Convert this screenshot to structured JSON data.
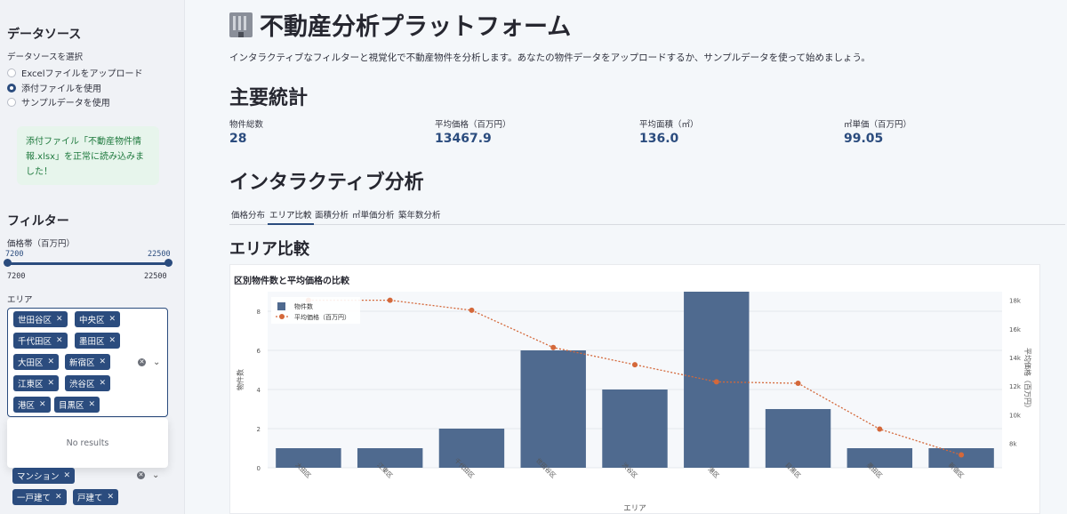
{
  "sidebar": {
    "data_source_heading": "データソース",
    "data_source_label": "データソースを選択",
    "options": [
      "Excelファイルをアップロード",
      "添付ファイルを使用",
      "サンプルデータを使用"
    ],
    "selected_option": 1,
    "success_message": "添付ファイル「不動産物件情報.xlsx」を正常に読み込みました！",
    "filter_heading": "フィルター",
    "price_label": "価格帯（百万円）",
    "price_min": "7200",
    "price_max": "22500",
    "price_min_bottom": "7200",
    "price_max_bottom": "22500",
    "area_label": "エリア",
    "area_tags": [
      "世田谷区",
      "中央区",
      "千代田区",
      "墨田区",
      "大田区",
      "新宿区",
      "江東区",
      "渋谷区",
      "港区",
      "目黒区"
    ],
    "no_results": "No results",
    "type_tags": [
      "マンション",
      "一戸建て",
      "戸建て"
    ]
  },
  "main": {
    "title": "不動産分析プラットフォーム",
    "title_icon": "office-building-icon",
    "description": "インタラクティブなフィルターと視覚化で不動産物件を分析します。あなたの物件データをアップロードするか、サンプルデータを使って始めましょう。",
    "stats_heading": "主要統計",
    "metrics": [
      {
        "label": "物件総数",
        "value": "28"
      },
      {
        "label": "平均価格（百万円）",
        "value": "13467.9"
      },
      {
        "label": "平均面積（㎡）",
        "value": "136.0"
      },
      {
        "label": "㎡単価（百万円）",
        "value": "99.05"
      }
    ],
    "analysis_heading": "インタラクティブ分析",
    "tabs": [
      "価格分布",
      "エリア比較",
      "面積分析",
      "㎡単価分析",
      "築年数分析"
    ],
    "active_tab": 1,
    "sub_heading": "エリア比較"
  },
  "colors": {
    "bar": "#4f6a8f",
    "line": "#d4683a",
    "accent": "#2b4c7e"
  },
  "chart_data": {
    "type": "bar",
    "title": "区別物件数と平均価格の比較",
    "xlabel": "エリア",
    "ylabel": "物件数",
    "y2label": "平均価格（百万円）",
    "categories": [
      "大田区",
      "江東区",
      "千代田区",
      "世田谷区",
      "渋谷区",
      "港区",
      "目黒区",
      "墨田区",
      "新宿区"
    ],
    "series": [
      {
        "name": "物件数",
        "type": "bar",
        "axis": "left",
        "values": [
          1,
          1,
          2,
          6,
          4,
          9,
          3,
          1,
          1
        ]
      },
      {
        "name": "平均価格（百万円）",
        "type": "line",
        "axis": "right",
        "values": [
          18000,
          18000,
          17300,
          14700,
          13500,
          12300,
          12200,
          9000,
          7200
        ]
      }
    ],
    "ylim": [
      0,
      9
    ],
    "y2lim": [
      6300,
      18600
    ],
    "yticks": [
      "0",
      "2",
      "4",
      "6",
      "8"
    ],
    "y2ticks": [
      "8k",
      "10k",
      "12k",
      "14k",
      "16k",
      "18k"
    ],
    "legend_position": "top-left"
  }
}
